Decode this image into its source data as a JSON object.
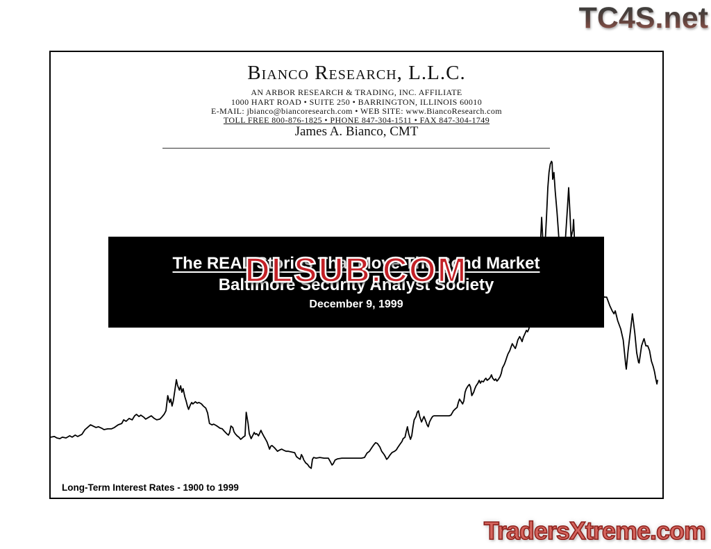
{
  "watermarks": {
    "top_right": "TC4S.net",
    "center_overlay": "DLSUB.COM",
    "bottom_right": "TradersXtreme.com"
  },
  "colors": {
    "watermark_red": "#c32127",
    "tc4s_gradient_top": "#413e3c",
    "tc4s_gradient_bottom": "#95544a",
    "traders_fill": "#d4655e",
    "traders_outline": "#8c1f1a",
    "banner_bg": "#000000",
    "banner_text": "#ffffff",
    "line_color": "#000000"
  },
  "header": {
    "company": "Bianco Research, L.L.C.",
    "affiliate_line": "AN ARBOR RESEARCH & TRADING, INC. AFFILIATE",
    "address_line": "1000 HART ROAD • SUITE 250 • BARRINGTON, ILLINOIS 60010",
    "contact_line": "E-MAIL:  jbianco@biancoresearch.com  •  WEB SITE:  www.BiancoResearch.com",
    "phone_line": "TOLL FREE  800-876-1825  •  PHONE  847-304-1511  •  FAX  847-304-1749",
    "author": "James A. Bianco, CMT"
  },
  "banner": {
    "title": "The REAL Stories That Move The Bond Market",
    "subtitle": "Baltimore Security Analyst Society",
    "date": "December 9, 1999"
  },
  "chart_data": {
    "type": "line",
    "title": "Long-Term Interest Rates - 1900 to 1999",
    "xlabel": "",
    "ylabel": "",
    "series_name": "Long-Term Interest Rates (%)",
    "xlim": [
      1900,
      1999
    ],
    "ylim": [
      0.86,
      19.62
    ],
    "grid": false,
    "legend": "none",
    "points": [
      [
        1900,
        3.4
      ],
      [
        1900.6,
        3.43
      ],
      [
        1901,
        3.37
      ],
      [
        1901.5,
        3.34
      ],
      [
        1901.9,
        3.4
      ],
      [
        1902.5,
        3.37
      ],
      [
        1903.1,
        3.46
      ],
      [
        1903.5,
        3.4
      ],
      [
        1904,
        3.49
      ],
      [
        1904.4,
        3.43
      ],
      [
        1905.1,
        3.52
      ],
      [
        1905.6,
        3.72
      ],
      [
        1906,
        3.81
      ],
      [
        1906.5,
        3.92
      ],
      [
        1906.9,
        3.87
      ],
      [
        1907.4,
        3.81
      ],
      [
        1907.8,
        3.84
      ],
      [
        1908.3,
        3.78
      ],
      [
        1908.7,
        3.72
      ],
      [
        1909.3,
        3.75
      ],
      [
        1909.9,
        3.75
      ],
      [
        1910.4,
        3.81
      ],
      [
        1911,
        3.92
      ],
      [
        1911.6,
        3.98
      ],
      [
        1911.9,
        4.13
      ],
      [
        1912.3,
        4.07
      ],
      [
        1912.8,
        4.19
      ],
      [
        1913.3,
        4.13
      ],
      [
        1913.7,
        4.3
      ],
      [
        1914,
        4.36
      ],
      [
        1914.4,
        4.27
      ],
      [
        1914.7,
        4.33
      ],
      [
        1915.2,
        4.24
      ],
      [
        1915.5,
        4.16
      ],
      [
        1916,
        4.24
      ],
      [
        1916.4,
        4.3
      ],
      [
        1916.9,
        4.19
      ],
      [
        1917.3,
        4.13
      ],
      [
        1917.8,
        4.16
      ],
      [
        1918.1,
        4.24
      ],
      [
        1918.5,
        4.36
      ],
      [
        1918.8,
        4.51
      ],
      [
        1919.1,
        5.15
      ],
      [
        1919.4,
        4.86
      ],
      [
        1919.6,
        5
      ],
      [
        1919.8,
        4.71
      ],
      [
        1920,
        4.92
      ],
      [
        1920.3,
        5.44
      ],
      [
        1920.5,
        5.82
      ],
      [
        1920.7,
        5.58
      ],
      [
        1921,
        5.38
      ],
      [
        1921.2,
        5.56
      ],
      [
        1921.4,
        5.29
      ],
      [
        1921.6,
        5.44
      ],
      [
        1921.9,
        5.09
      ],
      [
        1922.1,
        4.92
      ],
      [
        1922.3,
        4.71
      ],
      [
        1922.5,
        4.57
      ],
      [
        1922.8,
        4.77
      ],
      [
        1923,
        4.86
      ],
      [
        1923.2,
        4.8
      ],
      [
        1923.6,
        4.89
      ],
      [
        1923.9,
        4.83
      ],
      [
        1924.2,
        4.86
      ],
      [
        1924.6,
        4.8
      ],
      [
        1924.9,
        4.71
      ],
      [
        1925.3,
        4.62
      ],
      [
        1925.6,
        4.42
      ],
      [
        1925.9,
        3.98
      ],
      [
        1926.3,
        3.92
      ],
      [
        1926.6,
        3.95
      ],
      [
        1927,
        3.89
      ],
      [
        1927.3,
        3.84
      ],
      [
        1927.6,
        3.78
      ],
      [
        1928,
        3.75
      ],
      [
        1928.3,
        3.66
      ],
      [
        1928.7,
        3.55
      ],
      [
        1929,
        3.49
      ],
      [
        1929.2,
        3.6
      ],
      [
        1929.4,
        3.87
      ],
      [
        1929.7,
        3.81
      ],
      [
        1929.9,
        3.63
      ],
      [
        1930.1,
        3.55
      ],
      [
        1930.4,
        3.46
      ],
      [
        1930.7,
        3.4
      ],
      [
        1931,
        3.31
      ],
      [
        1931.4,
        3.4
      ],
      [
        1931.7,
        3.46
      ],
      [
        1931.9,
        4.45
      ],
      [
        1932.2,
        3.98
      ],
      [
        1932.4,
        3.55
      ],
      [
        1932.7,
        3.34
      ],
      [
        1933,
        3.49
      ],
      [
        1933.2,
        3.6
      ],
      [
        1933.4,
        3.52
      ],
      [
        1933.6,
        3.55
      ],
      [
        1933.9,
        3.46
      ],
      [
        1934.1,
        3.57
      ],
      [
        1934.3,
        3.69
      ],
      [
        1934.5,
        3.57
      ],
      [
        1934.8,
        3.43
      ],
      [
        1935,
        3.34
      ],
      [
        1935.3,
        3.2
      ],
      [
        1935.7,
        2.9
      ],
      [
        1935.9,
        3.02
      ],
      [
        1936.1,
        3.05
      ],
      [
        1936.5,
        2.96
      ],
      [
        1936.8,
        2.87
      ],
      [
        1937,
        2.81
      ],
      [
        1937.4,
        2.87
      ],
      [
        1937.7,
        2.9
      ],
      [
        1938.1,
        2.84
      ],
      [
        1938.4,
        2.81
      ],
      [
        1938.8,
        2.81
      ],
      [
        1939.3,
        2.78
      ],
      [
        1939.8,
        2.75
      ],
      [
        1940.1,
        2.58
      ],
      [
        1940.4,
        2.52
      ],
      [
        1940.7,
        2.47
      ],
      [
        1940.9,
        2.67
      ],
      [
        1941.1,
        2.58
      ],
      [
        1941.3,
        2.44
      ],
      [
        1941.6,
        2.32
      ],
      [
        1941.9,
        2.26
      ],
      [
        1942.2,
        2.15
      ],
      [
        1942.5,
        2.09
      ],
      [
        1942.7,
        2.47
      ],
      [
        1942.9,
        2.55
      ],
      [
        1943.3,
        2.52
      ],
      [
        1943.9,
        2.55
      ],
      [
        1944.6,
        2.52
      ],
      [
        1945.3,
        2.52
      ],
      [
        1945.6,
        2.38
      ],
      [
        1945.9,
        2.23
      ],
      [
        1946.1,
        2.29
      ],
      [
        1946.4,
        2.44
      ],
      [
        1946.8,
        2.49
      ],
      [
        1947.5,
        2.52
      ],
      [
        1948.1,
        2.52
      ],
      [
        1948.9,
        2.52
      ],
      [
        1949.8,
        2.52
      ],
      [
        1950.7,
        2.52
      ],
      [
        1951.2,
        2.55
      ],
      [
        1951.6,
        2.73
      ],
      [
        1952,
        2.81
      ],
      [
        1952.3,
        2.93
      ],
      [
        1952.7,
        3.08
      ],
      [
        1953,
        3.17
      ],
      [
        1953.3,
        3.14
      ],
      [
        1953.7,
        2.99
      ],
      [
        1954,
        2.81
      ],
      [
        1954.4,
        2.67
      ],
      [
        1954.6,
        2.58
      ],
      [
        1954.8,
        2.47
      ],
      [
        1955,
        2.52
      ],
      [
        1955.4,
        2.67
      ],
      [
        1955.7,
        2.76
      ],
      [
        1956.1,
        2.81
      ],
      [
        1956.4,
        2.87
      ],
      [
        1956.6,
        2.96
      ],
      [
        1957,
        3.11
      ],
      [
        1957.3,
        3.22
      ],
      [
        1957.5,
        3.34
      ],
      [
        1957.8,
        3.4
      ],
      [
        1958,
        3.63
      ],
      [
        1958.2,
        3.84
      ],
      [
        1958.4,
        3.55
      ],
      [
        1958.7,
        3.31
      ],
      [
        1958.9,
        3.46
      ],
      [
        1959.1,
        3.84
      ],
      [
        1959.3,
        4.13
      ],
      [
        1959.6,
        4.27
      ],
      [
        1959.8,
        4.45
      ],
      [
        1960,
        4.51
      ],
      [
        1960.2,
        4.27
      ],
      [
        1960.5,
        4.04
      ],
      [
        1960.7,
        4.16
      ],
      [
        1960.9,
        4.27
      ],
      [
        1961.2,
        4.07
      ],
      [
        1961.4,
        3.92
      ],
      [
        1961.6,
        3.84
      ],
      [
        1961.8,
        4.04
      ],
      [
        1962.1,
        4.19
      ],
      [
        1962.3,
        4.27
      ],
      [
        1962.5,
        4.3
      ],
      [
        1963,
        4.3
      ],
      [
        1963.6,
        4.3
      ],
      [
        1964.3,
        4.3
      ],
      [
        1965,
        4.3
      ],
      [
        1965.3,
        4.33
      ],
      [
        1965.7,
        4.51
      ],
      [
        1966,
        4.59
      ],
      [
        1966.3,
        4.65
      ],
      [
        1966.5,
        4.86
      ],
      [
        1966.7,
        5
      ],
      [
        1966.9,
        4.92
      ],
      [
        1967.2,
        4.8
      ],
      [
        1967.4,
        4.92
      ],
      [
        1967.6,
        5.29
      ],
      [
        1967.8,
        5.44
      ],
      [
        1968.1,
        5.56
      ],
      [
        1968.3,
        5.62
      ],
      [
        1968.5,
        5.5
      ],
      [
        1968.7,
        5.15
      ],
      [
        1969,
        5.29
      ],
      [
        1969.2,
        5.44
      ],
      [
        1969.4,
        5.56
      ],
      [
        1969.7,
        5.67
      ],
      [
        1969.9,
        5.79
      ],
      [
        1970.1,
        5.67
      ],
      [
        1970.3,
        5.76
      ],
      [
        1970.6,
        5.73
      ],
      [
        1970.8,
        5.82
      ],
      [
        1971,
        5.88
      ],
      [
        1971.2,
        5.79
      ],
      [
        1971.5,
        5.85
      ],
      [
        1971.7,
        5.91
      ],
      [
        1971.9,
        6.02
      ],
      [
        1972.1,
        5.88
      ],
      [
        1972.4,
        5.79
      ],
      [
        1972.6,
        5.85
      ],
      [
        1972.8,
        5.76
      ],
      [
        1973,
        5.82
      ],
      [
        1973.3,
        5.94
      ],
      [
        1973.5,
        6.08
      ],
      [
        1973.7,
        6.31
      ],
      [
        1974,
        6.46
      ],
      [
        1974.2,
        6.6
      ],
      [
        1974.4,
        6.75
      ],
      [
        1974.6,
        6.9
      ],
      [
        1974.9,
        7.04
      ],
      [
        1975.1,
        7.19
      ],
      [
        1975.3,
        7.33
      ],
      [
        1975.5,
        7.25
      ],
      [
        1975.8,
        7.13
      ],
      [
        1976,
        7.28
      ],
      [
        1976.2,
        7.48
      ],
      [
        1976.5,
        7.63
      ],
      [
        1976.7,
        7.54
      ],
      [
        1976.9,
        7.42
      ],
      [
        1977.1,
        7.6
      ],
      [
        1977.4,
        7.77
      ],
      [
        1977.6,
        7.89
      ],
      [
        1977.8,
        7.83
      ],
      [
        1978,
        7.95
      ],
      [
        1978.5,
        8.5
      ],
      [
        1978.9,
        9.23
      ],
      [
        1979.4,
        10.1
      ],
      [
        1979.9,
        11.56
      ],
      [
        1980.1,
        12.64
      ],
      [
        1980.2,
        12.14
      ],
      [
        1980.4,
        11.12
      ],
      [
        1980.7,
        11.71
      ],
      [
        1980.9,
        12.73
      ],
      [
        1981.1,
        13.89
      ],
      [
        1981.3,
        14.53
      ],
      [
        1981.5,
        14.88
      ],
      [
        1981.7,
        15
      ],
      [
        1981.8,
        14.94
      ],
      [
        1981.9,
        14.24
      ],
      [
        1982.1,
        14.53
      ],
      [
        1982.3,
        13.75
      ],
      [
        1982.6,
        12.87
      ],
      [
        1982.8,
        12.14
      ],
      [
        1983,
        11.41
      ],
      [
        1983.2,
        10.69
      ],
      [
        1983.5,
        10.1
      ],
      [
        1983.6,
        9.96
      ],
      [
        1983.8,
        10.54
      ],
      [
        1984,
        11.85
      ],
      [
        1984.3,
        13.02
      ],
      [
        1984.5,
        13.89
      ],
      [
        1984.7,
        12.87
      ],
      [
        1984.9,
        11.79
      ],
      [
        1985.2,
        12.14
      ],
      [
        1985.3,
        12.55
      ],
      [
        1985.5,
        11.41
      ],
      [
        1985.7,
        10.54
      ],
      [
        1986,
        9.96
      ],
      [
        1986.2,
        9.58
      ],
      [
        1986.4,
        9.23
      ],
      [
        1986.9,
        9.17
      ],
      [
        1987.3,
        9.11
      ],
      [
        1987.8,
        9.05
      ],
      [
        1988.2,
        9.05
      ],
      [
        1988.7,
        8.99
      ],
      [
        1989.1,
        9.17
      ],
      [
        1989.6,
        9.4
      ],
      [
        1989.8,
        9.52
      ],
      [
        1990,
        9.4
      ],
      [
        1990.3,
        9.29
      ],
      [
        1990.7,
        9.29
      ],
      [
        1991.2,
        8.94
      ],
      [
        1991.6,
        8.71
      ],
      [
        1991.9,
        8.59
      ],
      [
        1992.1,
        8.71
      ],
      [
        1992.5,
        8.3
      ],
      [
        1993,
        7.95
      ],
      [
        1993.4,
        7.48
      ],
      [
        1993.8,
        6.46
      ],
      [
        1993.9,
        6.26
      ],
      [
        1994.2,
        7.04
      ],
      [
        1994.6,
        7.92
      ],
      [
        1994.9,
        8.59
      ],
      [
        1995.3,
        7.77
      ],
      [
        1995.6,
        6.95
      ],
      [
        1995.9,
        6.55
      ],
      [
        1996,
        6.52
      ],
      [
        1996.4,
        7.24
      ],
      [
        1996.7,
        7.48
      ],
      [
        1996.8,
        7.54
      ],
      [
        1997.1,
        7.24
      ],
      [
        1997.4,
        7.24
      ],
      [
        1997.7,
        7.04
      ],
      [
        1998,
        6.6
      ],
      [
        1998.3,
        6.37
      ],
      [
        1998.5,
        6.16
      ],
      [
        1998.7,
        5.87
      ],
      [
        1998.9,
        5.64
      ],
      [
        1999,
        5.79
      ]
    ]
  }
}
